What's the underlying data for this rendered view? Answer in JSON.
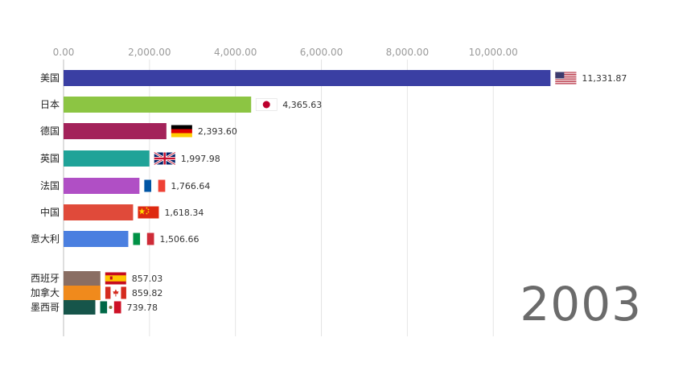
{
  "chart_data": {
    "type": "bar",
    "orientation": "horizontal",
    "title": "",
    "xlabel": "",
    "ylabel": "",
    "xlim": [
      0,
      11331.87
    ],
    "grid": true,
    "x_ticks": [
      "0.00",
      "2,000.00",
      "4,000.00",
      "6,000.00",
      "8,000.00",
      "10,000.00"
    ],
    "x_tick_values": [
      0,
      2000,
      4000,
      6000,
      8000,
      10000
    ],
    "year": "2003",
    "categories": [
      "美国",
      "日本",
      "德国",
      "英国",
      "法国",
      "中国",
      "意大利",
      "西班牙",
      "加拿大",
      "墨西哥"
    ],
    "values": [
      11331.87,
      4365.63,
      2393.6,
      1997.98,
      1766.64,
      1618.34,
      1506.66,
      857.03,
      859.82,
      739.78
    ],
    "value_labels": [
      "11,331.87",
      "4,365.63",
      "2,393.60",
      "1,997.98",
      "1,766.64",
      "1,618.34",
      "1,506.66",
      "857.03",
      "859.82",
      "739.78"
    ],
    "colors": [
      "#3a3fa3",
      "#8cc543",
      "#a3225a",
      "#1fa398",
      "#b04fc5",
      "#e04a3a",
      "#4a7fe0",
      "#8a6e63",
      "#f08a1c",
      "#16554a"
    ],
    "flags": [
      "us-flag",
      "japan-flag",
      "germany-flag",
      "uk-flag",
      "france-flag",
      "china-flag",
      "italy-flag",
      "spain-flag",
      "canada-flag",
      "mexico-flag"
    ]
  }
}
